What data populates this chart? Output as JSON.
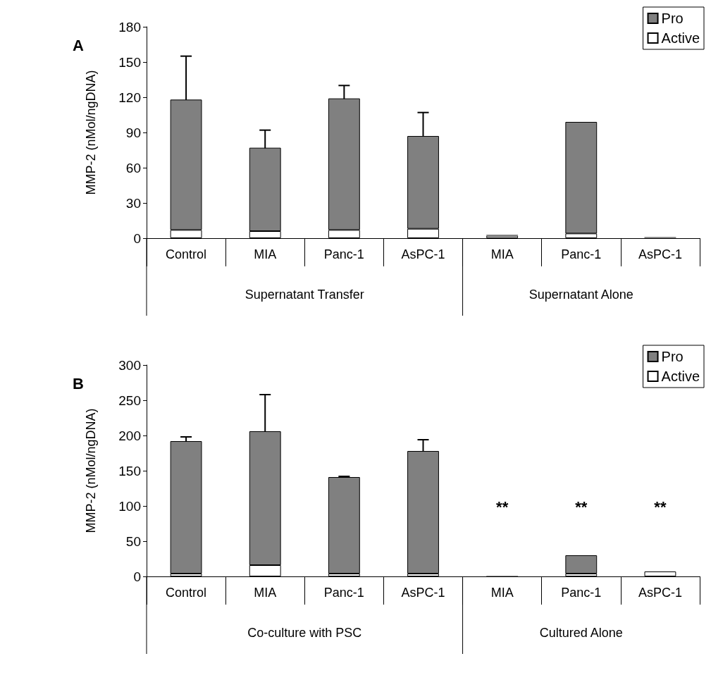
{
  "chart_data": [
    {
      "type": "bar",
      "title": "A",
      "ylabel": "MMP-2 (nMol/ngDNA)",
      "categories": [
        "Control",
        "MIA",
        "Panc-1",
        "AsPC-1",
        "MIA",
        "Panc-1",
        "AsPC-1"
      ],
      "stacked": true,
      "ylim": [
        0,
        180
      ],
      "yticks": [
        0,
        30,
        60,
        90,
        120,
        150,
        180
      ],
      "grid": false,
      "legend": "top right",
      "series": [
        {
          "name": "Active",
          "color": "#ffffff",
          "values": [
            7,
            6,
            7,
            8,
            2,
            4,
            null
          ]
        },
        {
          "name": "Pro",
          "color": "#808080",
          "values": [
            111,
            71,
            112,
            79,
            1,
            95,
            1
          ],
          "errors": [
            37,
            15,
            11,
            20,
            null,
            null,
            null
          ]
        }
      ],
      "annotations": [
        "Supernatant Transfer",
        "Supernatant Alone"
      ]
    },
    {
      "type": "bar",
      "title": "B",
      "ylabel": "MMP-2 (nMol/ngDNA)",
      "categories": [
        "Control",
        "MIA",
        "Panc-1",
        "AsPC-1",
        "MIA",
        "Panc-1",
        "AsPC-1"
      ],
      "stacked": true,
      "ylim": [
        0,
        300
      ],
      "yticks": [
        0,
        50,
        100,
        150,
        200,
        250,
        300
      ],
      "grid": false,
      "legend": "top right",
      "series": [
        {
          "name": "Active",
          "color": "#ffffff",
          "values": [
            4,
            16,
            4,
            4,
            null,
            4,
            7
          ]
        },
        {
          "name": "Pro",
          "color": "#808080",
          "values": [
            188,
            190,
            137,
            174,
            1,
            26,
            0
          ],
          "errors": [
            6,
            52,
            1,
            16,
            null,
            null,
            null
          ]
        }
      ],
      "annotations": [
        "Co-culture with PSC",
        "Cultured Alone",
        "**",
        "**",
        "**"
      ]
    }
  ]
}
